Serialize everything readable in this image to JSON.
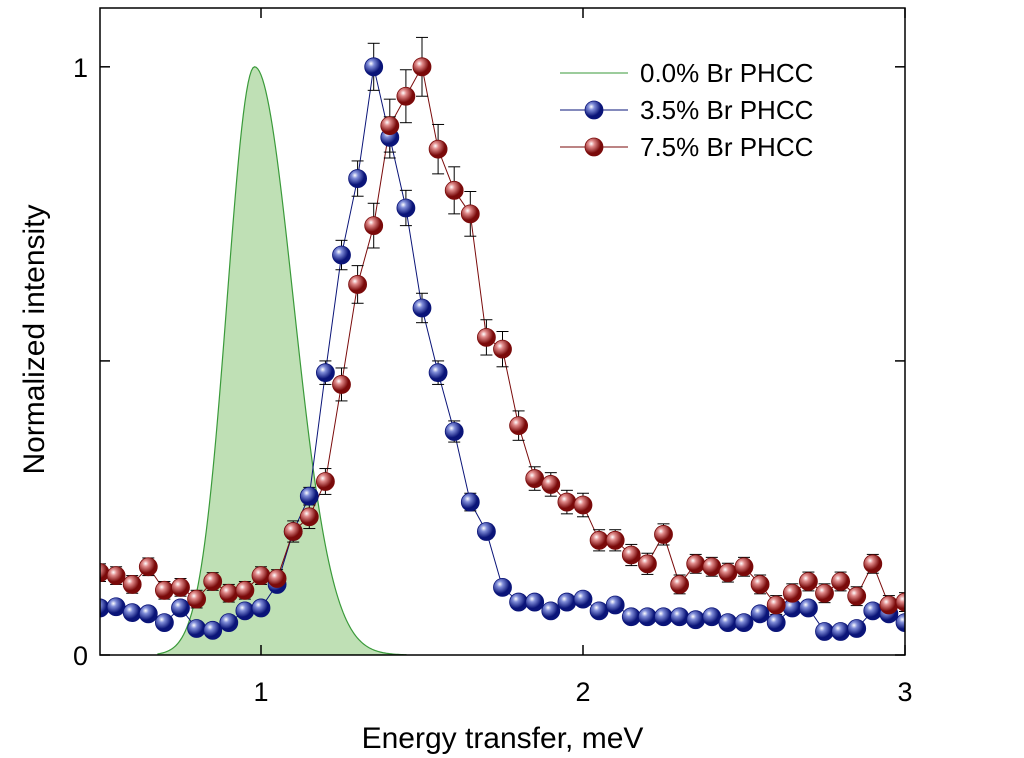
{
  "chart_data": {
    "type": "scatter",
    "xlabel": "Energy transfer, meV",
    "ylabel": "Normalized intensity",
    "xlim": [
      0.5,
      3.0
    ],
    "ylim": [
      0,
      1.1
    ],
    "xticks": [
      1,
      2,
      3
    ],
    "xtick_labels": [
      "1",
      "2",
      "3"
    ],
    "yticks": [
      0,
      0.5,
      1
    ],
    "ytick_labels": [
      "0",
      "",
      "1"
    ],
    "legend_position": "top-right",
    "series": [
      {
        "name": "0.0% Br PHCC",
        "kind": "filled-gaussian",
        "color": "#3a9a3a",
        "fill": "#bfe0b5",
        "center": 0.98,
        "peak": 1.0,
        "sigma_left": 0.085,
        "sigma_right": 0.12,
        "x_start": 0.68,
        "x_end": 1.45
      },
      {
        "name": "3.5% Br PHCC",
        "kind": "markers-line",
        "color": "#0a1478",
        "highlight": "#7f8cd8",
        "x": [
          0.5,
          0.55,
          0.6,
          0.65,
          0.7,
          0.75,
          0.8,
          0.85,
          0.9,
          0.95,
          1.0,
          1.05,
          1.1,
          1.15,
          1.2,
          1.25,
          1.3,
          1.35,
          1.4,
          1.45,
          1.5,
          1.55,
          1.6,
          1.65,
          1.7,
          1.75,
          1.8,
          1.85,
          1.9,
          1.95,
          2.0,
          2.05,
          2.1,
          2.15,
          2.2,
          2.25,
          2.3,
          2.35,
          2.4,
          2.45,
          2.5,
          2.55,
          2.6,
          2.65,
          2.7,
          2.75,
          2.8,
          2.85,
          2.9,
          2.95,
          3.0
        ],
        "y": [
          0.08,
          0.082,
          0.072,
          0.07,
          0.055,
          0.08,
          0.045,
          0.042,
          0.055,
          0.075,
          0.08,
          0.12,
          0.21,
          0.27,
          0.48,
          0.68,
          0.81,
          1.0,
          0.88,
          0.76,
          0.59,
          0.48,
          0.38,
          0.26,
          0.21,
          0.115,
          0.09,
          0.09,
          0.075,
          0.09,
          0.095,
          0.075,
          0.085,
          0.065,
          0.065,
          0.065,
          0.065,
          0.06,
          0.065,
          0.055,
          0.055,
          0.07,
          0.055,
          0.08,
          0.08,
          0.04,
          0.04,
          0.045,
          0.075,
          0.07,
          0.055
        ],
        "error": [
          0.008,
          0.008,
          0.008,
          0.008,
          0.008,
          0.008,
          0.008,
          0.008,
          0.008,
          0.008,
          0.008,
          0.01,
          0.012,
          0.015,
          0.02,
          0.025,
          0.03,
          0.04,
          0.035,
          0.03,
          0.025,
          0.02,
          0.018,
          0.015,
          0.012,
          0.01,
          0.009,
          0.009,
          0.008,
          0.008,
          0.008,
          0.008,
          0.008,
          0.008,
          0.008,
          0.008,
          0.008,
          0.008,
          0.008,
          0.008,
          0.008,
          0.008,
          0.008,
          0.008,
          0.008,
          0.008,
          0.008,
          0.008,
          0.008,
          0.008,
          0.008
        ]
      },
      {
        "name": "7.5% Br PHCC",
        "kind": "markers-line",
        "color": "#7a0a0a",
        "highlight": "#e08a8a",
        "x": [
          0.5,
          0.55,
          0.6,
          0.65,
          0.7,
          0.75,
          0.8,
          0.85,
          0.9,
          0.95,
          1.0,
          1.05,
          1.1,
          1.15,
          1.2,
          1.25,
          1.3,
          1.35,
          1.4,
          1.45,
          1.5,
          1.55,
          1.6,
          1.65,
          1.7,
          1.75,
          1.8,
          1.85,
          1.9,
          1.95,
          2.0,
          2.05,
          2.1,
          2.15,
          2.2,
          2.25,
          2.3,
          2.35,
          2.4,
          2.45,
          2.5,
          2.55,
          2.6,
          2.65,
          2.7,
          2.75,
          2.8,
          2.85,
          2.9,
          2.95,
          3.0
        ],
        "y": [
          0.14,
          0.135,
          0.12,
          0.15,
          0.11,
          0.115,
          0.095,
          0.125,
          0.105,
          0.11,
          0.135,
          0.13,
          0.21,
          0.235,
          0.295,
          0.46,
          0.63,
          0.73,
          0.9,
          0.95,
          1.0,
          0.86,
          0.79,
          0.75,
          0.54,
          0.52,
          0.39,
          0.3,
          0.29,
          0.26,
          0.255,
          0.195,
          0.195,
          0.17,
          0.155,
          0.205,
          0.12,
          0.155,
          0.15,
          0.14,
          0.15,
          0.12,
          0.085,
          0.105,
          0.125,
          0.105,
          0.125,
          0.1,
          0.155,
          0.085,
          0.09
        ],
        "error": [
          0.015,
          0.015,
          0.015,
          0.015,
          0.015,
          0.015,
          0.015,
          0.015,
          0.015,
          0.015,
          0.015,
          0.015,
          0.018,
          0.02,
          0.022,
          0.028,
          0.032,
          0.038,
          0.045,
          0.045,
          0.05,
          0.042,
          0.04,
          0.038,
          0.03,
          0.03,
          0.025,
          0.02,
          0.02,
          0.02,
          0.02,
          0.018,
          0.018,
          0.018,
          0.018,
          0.018,
          0.016,
          0.016,
          0.016,
          0.016,
          0.016,
          0.016,
          0.016,
          0.016,
          0.016,
          0.016,
          0.016,
          0.016,
          0.016,
          0.016,
          0.016
        ]
      }
    ]
  }
}
